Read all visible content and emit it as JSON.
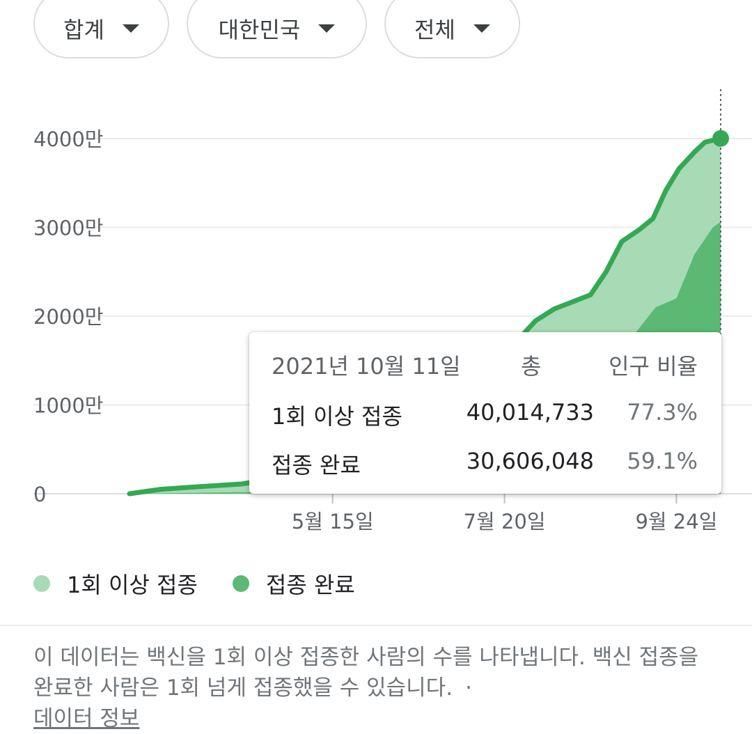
{
  "filters": [
    {
      "label": "합계"
    },
    {
      "label": "대한민국"
    },
    {
      "label": "전체"
    }
  ],
  "chart_data": {
    "type": "area",
    "y_ticks": [
      "4000만",
      "3000만",
      "2000만",
      "1000만",
      "0"
    ],
    "x_ticks": [
      "5월 15일",
      "7월 20일",
      "9월 24일"
    ],
    "ylim": [
      0,
      40000000
    ],
    "x_range": [
      "2021-02-26",
      "2021-10-11"
    ],
    "grid": true,
    "series": [
      {
        "name": "1회 이상 접종",
        "color": "#a8dab5",
        "line_color": "#34a853",
        "points": [
          [
            "2021-02-26",
            0
          ],
          [
            "2021-03-10",
            500000
          ],
          [
            "2021-03-25",
            800000
          ],
          [
            "2021-04-10",
            1100000
          ],
          [
            "2021-04-25",
            1800000
          ],
          [
            "2021-05-10",
            3200000
          ],
          [
            "2021-05-25",
            4200000
          ],
          [
            "2021-06-10",
            11000000
          ],
          [
            "2021-06-25",
            15000000
          ],
          [
            "2021-07-10",
            15500000
          ],
          [
            "2021-07-25",
            17300000
          ],
          [
            "2021-08-01",
            19500000
          ],
          [
            "2021-08-08",
            20800000
          ],
          [
            "2021-08-15",
            21600000
          ],
          [
            "2021-08-22",
            22400000
          ],
          [
            "2021-08-28",
            25000000
          ],
          [
            "2021-09-03",
            28400000
          ],
          [
            "2021-09-10",
            29800000
          ],
          [
            "2021-09-15",
            31000000
          ],
          [
            "2021-09-20",
            34200000
          ],
          [
            "2021-09-25",
            36600000
          ],
          [
            "2021-10-01",
            38500000
          ],
          [
            "2021-10-05",
            39600000
          ],
          [
            "2021-10-11",
            40014733
          ]
        ]
      },
      {
        "name": "접종 완료",
        "color": "#5bb974",
        "points": [
          [
            "2021-02-26",
            0
          ],
          [
            "2021-04-15",
            200000
          ],
          [
            "2021-05-15",
            800000
          ],
          [
            "2021-06-15",
            2500000
          ],
          [
            "2021-07-15",
            5500000
          ],
          [
            "2021-08-15",
            11000000
          ],
          [
            "2021-08-30",
            15000000
          ],
          [
            "2021-09-08",
            18000000
          ],
          [
            "2021-09-16",
            21000000
          ],
          [
            "2021-09-24",
            22000000
          ],
          [
            "2021-10-01",
            27000000
          ],
          [
            "2021-10-08",
            30000000
          ],
          [
            "2021-10-11",
            30606048
          ]
        ]
      }
    ]
  },
  "tooltip": {
    "date": "2021년 10월 11일",
    "col_total": "총",
    "col_ratio": "인구 비율",
    "rows": [
      {
        "label": "1회 이상 접종",
        "total": "40,014,733",
        "ratio": "77.3%"
      },
      {
        "label": "접종 완료",
        "total": "30,606,048",
        "ratio": "59.1%"
      }
    ]
  },
  "legend": [
    {
      "label": "1회 이상 접종",
      "color": "#a8dab5"
    },
    {
      "label": "접종 완료",
      "color": "#5bb974"
    }
  ],
  "footnote": {
    "text": "이 데이터는 백신을 1회 이상 접종한 사람의 수를 나타냅니다. 백신 접종을 완료한 사람은 1회 넘게 접종했을 수 있습니다.",
    "separator": "·",
    "link": "데이터 정보"
  }
}
